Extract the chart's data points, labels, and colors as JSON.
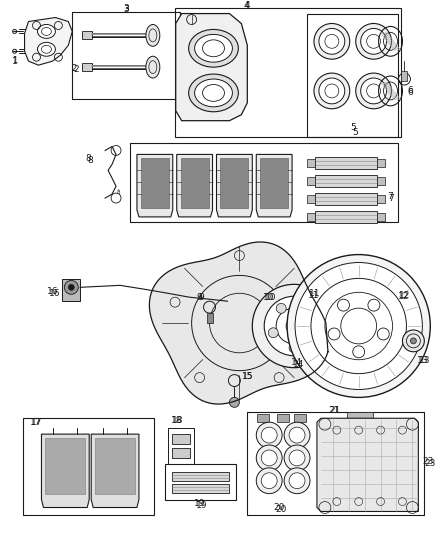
{
  "bg_color": "#ffffff",
  "line_color": "#1a1a1a",
  "gray_light": "#cccccc",
  "gray_mid": "#999999",
  "gray_dark": "#555555",
  "figsize": [
    4.38,
    5.33
  ],
  "dpi": 100
}
